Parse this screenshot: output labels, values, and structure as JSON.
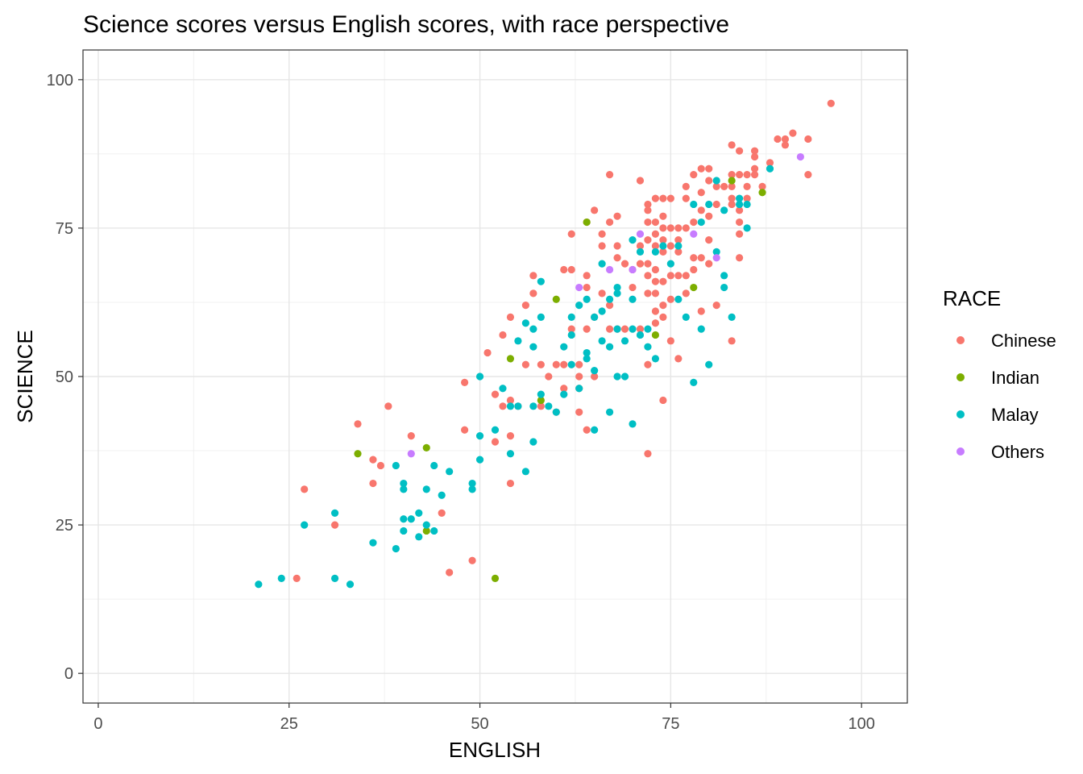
{
  "chart_data": {
    "type": "scatter",
    "title": "Science scores versus English scores, with race perspective",
    "xlabel": "ENGLISH",
    "ylabel": "SCIENCE",
    "xlim": [
      -2,
      106
    ],
    "ylim": [
      -5,
      105
    ],
    "xticks": [
      0,
      25,
      50,
      75,
      100
    ],
    "yticks": [
      0,
      25,
      50,
      75,
      100
    ],
    "x_tick_labels": [
      "0",
      "25",
      "50",
      "75",
      "100"
    ],
    "y_tick_labels": [
      "0",
      "25",
      "50",
      "75",
      "100"
    ],
    "grid": true,
    "legend": {
      "title": "RACE",
      "position": "right"
    },
    "series": [
      {
        "name": "Chinese",
        "color": "#F8766D",
        "points": [
          [
            26,
            16
          ],
          [
            27,
            31
          ],
          [
            31,
            25
          ],
          [
            34,
            42
          ],
          [
            36,
            36
          ],
          [
            36,
            32
          ],
          [
            37,
            35
          ],
          [
            38,
            45
          ],
          [
            41,
            40
          ],
          [
            45,
            27
          ],
          [
            46,
            17
          ],
          [
            48,
            49
          ],
          [
            48,
            41
          ],
          [
            49,
            19
          ],
          [
            51,
            54
          ],
          [
            52,
            47
          ],
          [
            52,
            39
          ],
          [
            53,
            45
          ],
          [
            53,
            57
          ],
          [
            54,
            60
          ],
          [
            54,
            46
          ],
          [
            54,
            40
          ],
          [
            54,
            32
          ],
          [
            55,
            45
          ],
          [
            56,
            52
          ],
          [
            56,
            62
          ],
          [
            57,
            67
          ],
          [
            57,
            64
          ],
          [
            58,
            52
          ],
          [
            58,
            45
          ],
          [
            59,
            50
          ],
          [
            60,
            52
          ],
          [
            60,
            44
          ],
          [
            61,
            68
          ],
          [
            61,
            52
          ],
          [
            61,
            48
          ],
          [
            62,
            74
          ],
          [
            62,
            58
          ],
          [
            62,
            68
          ],
          [
            63,
            52
          ],
          [
            63,
            50
          ],
          [
            63,
            48
          ],
          [
            63,
            44
          ],
          [
            64,
            76
          ],
          [
            64,
            67
          ],
          [
            64,
            65
          ],
          [
            64,
            58
          ],
          [
            64,
            41
          ],
          [
            65,
            78
          ],
          [
            65,
            60
          ],
          [
            65,
            50
          ],
          [
            66,
            72
          ],
          [
            66,
            64
          ],
          [
            66,
            74
          ],
          [
            67,
            84
          ],
          [
            67,
            76
          ],
          [
            67,
            62
          ],
          [
            67,
            58
          ],
          [
            68,
            77
          ],
          [
            68,
            72
          ],
          [
            68,
            70
          ],
          [
            68,
            58
          ],
          [
            69,
            69
          ],
          [
            69,
            58
          ],
          [
            70,
            68
          ],
          [
            70,
            65
          ],
          [
            71,
            83
          ],
          [
            71,
            72
          ],
          [
            71,
            69
          ],
          [
            71,
            58
          ],
          [
            72,
            79
          ],
          [
            72,
            78
          ],
          [
            72,
            76
          ],
          [
            72,
            73
          ],
          [
            72,
            69
          ],
          [
            72,
            67
          ],
          [
            72,
            64
          ],
          [
            72,
            52
          ],
          [
            72,
            37
          ],
          [
            73,
            80
          ],
          [
            73,
            76
          ],
          [
            73,
            74
          ],
          [
            73,
            72
          ],
          [
            73,
            68
          ],
          [
            73,
            66
          ],
          [
            73,
            64
          ],
          [
            73,
            61
          ],
          [
            73,
            59
          ],
          [
            74,
            80
          ],
          [
            74,
            77
          ],
          [
            74,
            75
          ],
          [
            74,
            73
          ],
          [
            74,
            71
          ],
          [
            74,
            66
          ],
          [
            74,
            62
          ],
          [
            74,
            60
          ],
          [
            74,
            46
          ],
          [
            75,
            80
          ],
          [
            75,
            75
          ],
          [
            75,
            72
          ],
          [
            75,
            67
          ],
          [
            75,
            63
          ],
          [
            75,
            56
          ],
          [
            76,
            75
          ],
          [
            76,
            73
          ],
          [
            76,
            71
          ],
          [
            76,
            67
          ],
          [
            76,
            53
          ],
          [
            77,
            82
          ],
          [
            77,
            80
          ],
          [
            77,
            75
          ],
          [
            77,
            67
          ],
          [
            77,
            64
          ],
          [
            78,
            84
          ],
          [
            78,
            76
          ],
          [
            78,
            70
          ],
          [
            78,
            68
          ],
          [
            79,
            85
          ],
          [
            79,
            81
          ],
          [
            79,
            78
          ],
          [
            79,
            70
          ],
          [
            79,
            61
          ],
          [
            80,
            85
          ],
          [
            80,
            83
          ],
          [
            80,
            77
          ],
          [
            80,
            73
          ],
          [
            80,
            69
          ],
          [
            81,
            82
          ],
          [
            81,
            79
          ],
          [
            81,
            62
          ],
          [
            82,
            82
          ],
          [
            83,
            89
          ],
          [
            83,
            84
          ],
          [
            83,
            82
          ],
          [
            83,
            80
          ],
          [
            83,
            79
          ],
          [
            83,
            56
          ],
          [
            84,
            88
          ],
          [
            84,
            84
          ],
          [
            84,
            78
          ],
          [
            84,
            76
          ],
          [
            84,
            74
          ],
          [
            84,
            70
          ],
          [
            85,
            84
          ],
          [
            85,
            82
          ],
          [
            85,
            80
          ],
          [
            86,
            88
          ],
          [
            86,
            87
          ],
          [
            86,
            85
          ],
          [
            86,
            84
          ],
          [
            87,
            82
          ],
          [
            88,
            86
          ],
          [
            89,
            90
          ],
          [
            90,
            90
          ],
          [
            90,
            89
          ],
          [
            91,
            91
          ],
          [
            93,
            90
          ],
          [
            93,
            84
          ],
          [
            96,
            96
          ]
        ]
      },
      {
        "name": "Indian",
        "color": "#7CAE00",
        "points": [
          [
            34,
            37
          ],
          [
            43,
            38
          ],
          [
            43,
            24
          ],
          [
            52,
            16
          ],
          [
            54,
            53
          ],
          [
            58,
            46
          ],
          [
            60,
            63
          ],
          [
            64,
            76
          ],
          [
            73,
            57
          ],
          [
            78,
            65
          ],
          [
            83,
            83
          ],
          [
            87,
            81
          ]
        ]
      },
      {
        "name": "Malay",
        "color": "#00BFC4",
        "points": [
          [
            21,
            15
          ],
          [
            24,
            16
          ],
          [
            27,
            25
          ],
          [
            31,
            27
          ],
          [
            31,
            16
          ],
          [
            33,
            15
          ],
          [
            36,
            22
          ],
          [
            39,
            35
          ],
          [
            39,
            21
          ],
          [
            40,
            32
          ],
          [
            40,
            31
          ],
          [
            40,
            26
          ],
          [
            40,
            24
          ],
          [
            41,
            26
          ],
          [
            42,
            27
          ],
          [
            42,
            23
          ],
          [
            43,
            31
          ],
          [
            43,
            25
          ],
          [
            44,
            35
          ],
          [
            44,
            24
          ],
          [
            45,
            30
          ],
          [
            46,
            34
          ],
          [
            49,
            32
          ],
          [
            49,
            31
          ],
          [
            50,
            50
          ],
          [
            50,
            40
          ],
          [
            50,
            36
          ],
          [
            52,
            41
          ],
          [
            53,
            48
          ],
          [
            54,
            37
          ],
          [
            54,
            45
          ],
          [
            55,
            56
          ],
          [
            55,
            45
          ],
          [
            56,
            59
          ],
          [
            56,
            34
          ],
          [
            57,
            58
          ],
          [
            57,
            55
          ],
          [
            57,
            39
          ],
          [
            57,
            45
          ],
          [
            58,
            66
          ],
          [
            58,
            60
          ],
          [
            58,
            47
          ],
          [
            59,
            45
          ],
          [
            60,
            44
          ],
          [
            61,
            55
          ],
          [
            61,
            47
          ],
          [
            62,
            60
          ],
          [
            62,
            57
          ],
          [
            62,
            52
          ],
          [
            63,
            62
          ],
          [
            63,
            48
          ],
          [
            64,
            63
          ],
          [
            64,
            54
          ],
          [
            64,
            53
          ],
          [
            65,
            60
          ],
          [
            65,
            51
          ],
          [
            65,
            41
          ],
          [
            66,
            69
          ],
          [
            66,
            61
          ],
          [
            66,
            56
          ],
          [
            67,
            63
          ],
          [
            67,
            55
          ],
          [
            67,
            44
          ],
          [
            68,
            65
          ],
          [
            68,
            64
          ],
          [
            68,
            58
          ],
          [
            68,
            50
          ],
          [
            69,
            56
          ],
          [
            69,
            50
          ],
          [
            70,
            73
          ],
          [
            70,
            63
          ],
          [
            70,
            58
          ],
          [
            70,
            42
          ],
          [
            71,
            71
          ],
          [
            71,
            57
          ],
          [
            72,
            58
          ],
          [
            72,
            55
          ],
          [
            73,
            71
          ],
          [
            73,
            53
          ],
          [
            74,
            72
          ],
          [
            75,
            69
          ],
          [
            76,
            72
          ],
          [
            76,
            63
          ],
          [
            77,
            60
          ],
          [
            78,
            79
          ],
          [
            78,
            49
          ],
          [
            79,
            76
          ],
          [
            79,
            58
          ],
          [
            80,
            79
          ],
          [
            80,
            52
          ],
          [
            81,
            83
          ],
          [
            81,
            71
          ],
          [
            82,
            78
          ],
          [
            82,
            67
          ],
          [
            82,
            65
          ],
          [
            83,
            60
          ],
          [
            84,
            80
          ],
          [
            84,
            79
          ],
          [
            85,
            79
          ],
          [
            85,
            75
          ],
          [
            88,
            85
          ]
        ]
      },
      {
        "name": "Others",
        "color": "#C77CFF",
        "points": [
          [
            41,
            37
          ],
          [
            63,
            65
          ],
          [
            67,
            68
          ],
          [
            70,
            68
          ],
          [
            71,
            74
          ],
          [
            78,
            74
          ],
          [
            81,
            70
          ],
          [
            92,
            87
          ]
        ]
      }
    ]
  }
}
